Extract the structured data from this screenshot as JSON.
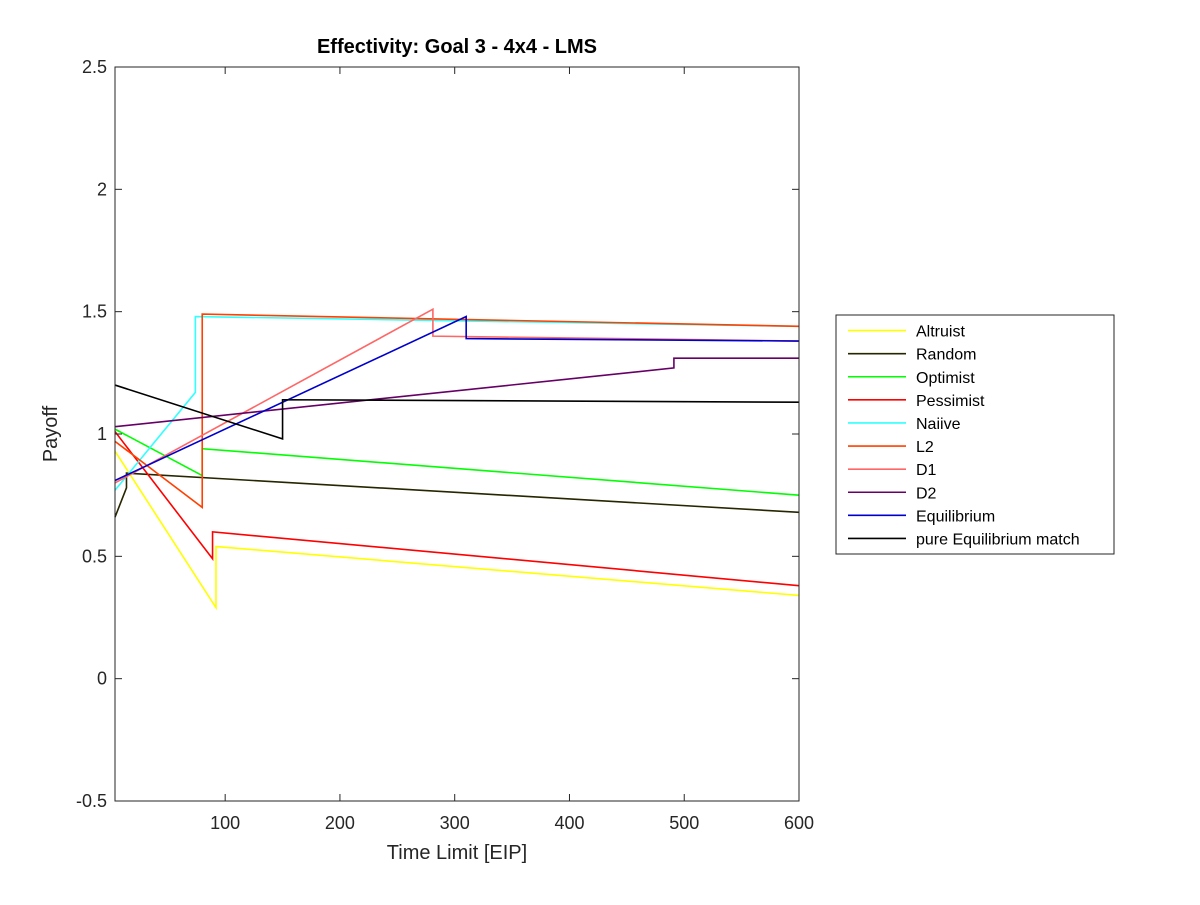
{
  "chart_data": {
    "type": "line",
    "title": "Effectivity: Goal 3 - 4x4 - LMS",
    "xlabel": "Time Limit [EIP]",
    "ylabel": "Payoff",
    "xlim": [
      4,
      600
    ],
    "ylim": [
      -0.5,
      2.5
    ],
    "xticks": [
      100,
      200,
      300,
      400,
      500,
      600
    ],
    "xtick_labels": [
      "100",
      "200",
      "300",
      "400",
      "500",
      "600"
    ],
    "yticks": [
      -0.5,
      0,
      0.5,
      1,
      1.5,
      2,
      2.5
    ],
    "ytick_labels": [
      "-0.5",
      "0",
      "0.5",
      "1",
      "1.5",
      "2",
      "2.5"
    ],
    "grid": false,
    "legend_position": "outside-right",
    "series": [
      {
        "name": "Altruist",
        "color": "#FFFF00",
        "points": [
          [
            4,
            0.93
          ],
          [
            92,
            0.29
          ],
          [
            92,
            0.54
          ],
          [
            600,
            0.34
          ]
        ]
      },
      {
        "name": "Random",
        "color": "#262600",
        "points": [
          [
            4,
            0.66
          ],
          [
            14,
            0.78
          ],
          [
            14,
            0.84
          ],
          [
            600,
            0.68
          ]
        ]
      },
      {
        "name": "Optimist",
        "color": "#00FF00",
        "points": [
          [
            4,
            1.02
          ],
          [
            80,
            0.83
          ],
          [
            80,
            0.94
          ],
          [
            600,
            0.75
          ]
        ]
      },
      {
        "name": "Pessimist",
        "color": "#FF0000",
        "points": [
          [
            4,
            1.01
          ],
          [
            89,
            0.49
          ],
          [
            89,
            0.6
          ],
          [
            600,
            0.38
          ]
        ]
      },
      {
        "name": "Naiive",
        "color": "#33FFFF",
        "points": [
          [
            4,
            0.77
          ],
          [
            74,
            1.17
          ],
          [
            74,
            1.48
          ],
          [
            600,
            1.44
          ]
        ]
      },
      {
        "name": "L2",
        "color": "#FF4000",
        "points": [
          [
            4,
            0.97
          ],
          [
            80,
            0.7
          ],
          [
            80,
            1.49
          ],
          [
            600,
            1.44
          ]
        ]
      },
      {
        "name": "D1",
        "color": "#FF6666",
        "points": [
          [
            4,
            0.8
          ],
          [
            281,
            1.51
          ],
          [
            281,
            1.4
          ],
          [
            600,
            1.38
          ]
        ]
      },
      {
        "name": "D2",
        "color": "#660066",
        "points": [
          [
            4,
            1.03
          ],
          [
            491,
            1.27
          ],
          [
            491,
            1.31
          ],
          [
            600,
            1.31
          ]
        ]
      },
      {
        "name": "Equilibrium",
        "color": "#0000CC",
        "points": [
          [
            4,
            0.81
          ],
          [
            310,
            1.48
          ],
          [
            310,
            1.39
          ],
          [
            600,
            1.38
          ]
        ]
      },
      {
        "name": "pure Equilibrium match",
        "color": "#000000",
        "points": [
          [
            4,
            1.2
          ],
          [
            150,
            0.98
          ],
          [
            150,
            1.14
          ],
          [
            600,
            1.13
          ]
        ]
      }
    ]
  }
}
